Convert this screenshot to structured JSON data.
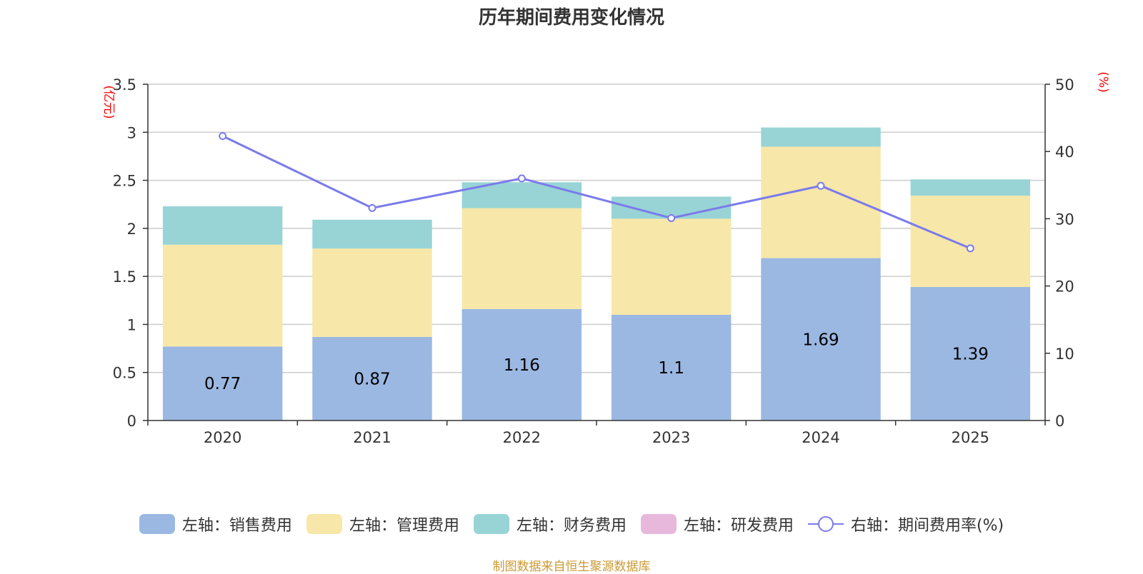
{
  "chart_data": {
    "type": "bar",
    "title": "历年期间费用变化情况",
    "categories": [
      "2020",
      "2021",
      "2022",
      "2023",
      "2024",
      "2025"
    ],
    "series": [
      {
        "name": "左轴：销售费用",
        "axis": "left",
        "color": "#9bb8e2",
        "values": [
          0.77,
          0.87,
          1.16,
          1.1,
          1.69,
          1.39
        ]
      },
      {
        "name": "左轴：管理费用",
        "axis": "left",
        "color": "#f7e7a9",
        "values": [
          1.06,
          0.92,
          1.05,
          1.0,
          1.16,
          0.95
        ]
      },
      {
        "name": "左轴：财务费用",
        "axis": "left",
        "color": "#98d4d5",
        "values": [
          0.4,
          0.3,
          0.27,
          0.23,
          0.2,
          0.17
        ]
      },
      {
        "name": "左轴：研发费用",
        "axis": "left",
        "color": "#e8b8dc",
        "values": [
          0,
          0,
          0,
          0,
          0,
          0
        ]
      }
    ],
    "line_series": {
      "name": "右轴：期间费用率(%)",
      "axis": "right",
      "color": "#7b7bea",
      "values": [
        42.3,
        31.6,
        36.0,
        30.1,
        34.9,
        25.6
      ]
    },
    "bar_labels": [
      "0.77",
      "0.87",
      "1.16",
      "1.1",
      "1.69",
      "1.39"
    ],
    "y_left": {
      "label": "(亿元)",
      "min": 0,
      "max": 3.5,
      "ticks": [
        "0",
        "0.5",
        "1",
        "1.5",
        "2",
        "2.5",
        "3",
        "3.5"
      ]
    },
    "y_right": {
      "label": "(%)",
      "min": 0,
      "max": 50,
      "ticks": [
        "0",
        "10",
        "20",
        "30",
        "40",
        "50"
      ]
    },
    "grid": true,
    "legend_position": "bottom"
  },
  "footer": {
    "source": "制图数据来自恒生聚源数据库",
    "color": "#cc9933"
  }
}
